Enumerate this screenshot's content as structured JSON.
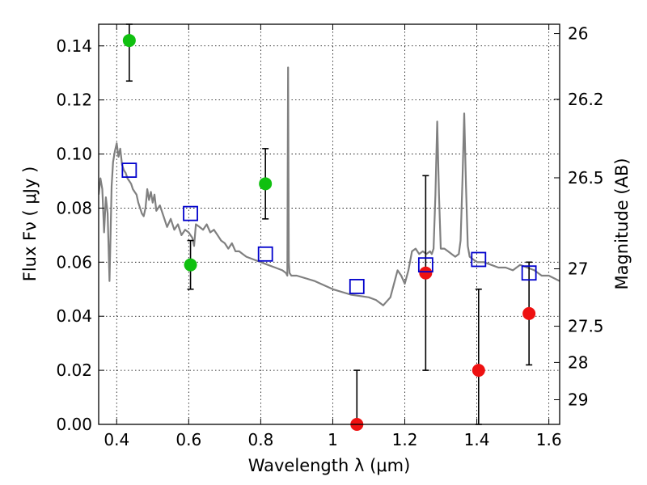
{
  "chart_data": {
    "type": "scatter",
    "xlabel": "Wavelength  λ (μm)",
    "ylabel": "Flux  Fν  ( μJy )",
    "y2label": "Magnitude (AB)",
    "xlim": [
      0.35,
      1.63
    ],
    "ylim": [
      0.0,
      0.148
    ],
    "grid": true,
    "x_ticks": [
      {
        "value": 0.4,
        "label": "0.4"
      },
      {
        "value": 0.6,
        "label": "0.6"
      },
      {
        "value": 0.8,
        "label": "0.8"
      },
      {
        "value": 1.0,
        "label": "1"
      },
      {
        "value": 1.2,
        "label": "1.2"
      },
      {
        "value": 1.4,
        "label": "1.4"
      },
      {
        "value": 1.6,
        "label": "1.6"
      }
    ],
    "y_ticks": [
      {
        "value": 0.0,
        "label": "0.00"
      },
      {
        "value": 0.02,
        "label": "0.02"
      },
      {
        "value": 0.04,
        "label": "0.04"
      },
      {
        "value": 0.06,
        "label": "0.06"
      },
      {
        "value": 0.08,
        "label": "0.08"
      },
      {
        "value": 0.1,
        "label": "0.10"
      },
      {
        "value": 0.12,
        "label": "0.12"
      },
      {
        "value": 0.14,
        "label": "0.14"
      }
    ],
    "y2_ticks": [
      {
        "value": 26,
        "label": "26"
      },
      {
        "value": 26.2,
        "label": "26.2"
      },
      {
        "value": 26.5,
        "label": "26.5"
      },
      {
        "value": 27,
        "label": "27"
      },
      {
        "value": 27.5,
        "label": "27.5"
      },
      {
        "value": 28,
        "label": "28"
      },
      {
        "value": 29,
        "label": "29"
      }
    ],
    "colors": {
      "detected": "#10c010",
      "undetected": "#ee1111",
      "model_photometry": "#0000cc",
      "sed": "#808080",
      "errorbar": "#000000"
    },
    "series": [
      {
        "kind": "line",
        "x": [
          0.35,
          0.355,
          0.36,
          0.365,
          0.37,
          0.375,
          0.38,
          0.383,
          0.386,
          0.39,
          0.395,
          0.4,
          0.405,
          0.41,
          0.415,
          0.42,
          0.425,
          0.43,
          0.435,
          0.44,
          0.445,
          0.45,
          0.455,
          0.46,
          0.465,
          0.47,
          0.475,
          0.48,
          0.485,
          0.49,
          0.495,
          0.5,
          0.505,
          0.51,
          0.52,
          0.53,
          0.54,
          0.55,
          0.56,
          0.57,
          0.58,
          0.59,
          0.6,
          0.61,
          0.615,
          0.62,
          0.63,
          0.64,
          0.65,
          0.66,
          0.67,
          0.68,
          0.69,
          0.7,
          0.71,
          0.72,
          0.73,
          0.74,
          0.75,
          0.76,
          0.78,
          0.8,
          0.82,
          0.84,
          0.86,
          0.87,
          0.874,
          0.876,
          0.878,
          0.88,
          0.885,
          0.9,
          0.95,
          1.0,
          1.05,
          1.1,
          1.12,
          1.14,
          1.16,
          1.18,
          1.19,
          1.2,
          1.21,
          1.22,
          1.23,
          1.24,
          1.25,
          1.26,
          1.27,
          1.275,
          1.28,
          1.285,
          1.29,
          1.295,
          1.3,
          1.31,
          1.32,
          1.33,
          1.34,
          1.35,
          1.355,
          1.36,
          1.365,
          1.37,
          1.375,
          1.38,
          1.4,
          1.42,
          1.44,
          1.46,
          1.48,
          1.5,
          1.52,
          1.54,
          1.56,
          1.58,
          1.6,
          1.63
        ],
        "y": [
          0.085,
          0.091,
          0.087,
          0.071,
          0.084,
          0.078,
          0.053,
          0.07,
          0.088,
          0.097,
          0.101,
          0.104,
          0.099,
          0.102,
          0.096,
          0.094,
          0.093,
          0.091,
          0.09,
          0.089,
          0.087,
          0.086,
          0.085,
          0.082,
          0.08,
          0.078,
          0.077,
          0.08,
          0.087,
          0.083,
          0.086,
          0.082,
          0.085,
          0.079,
          0.081,
          0.077,
          0.073,
          0.076,
          0.072,
          0.074,
          0.07,
          0.072,
          0.071,
          0.069,
          0.066,
          0.074,
          0.073,
          0.072,
          0.074,
          0.071,
          0.072,
          0.07,
          0.068,
          0.067,
          0.065,
          0.067,
          0.064,
          0.064,
          0.063,
          0.062,
          0.061,
          0.06,
          0.059,
          0.058,
          0.057,
          0.056,
          0.055,
          0.132,
          0.06,
          0.056,
          0.055,
          0.055,
          0.053,
          0.05,
          0.048,
          0.047,
          0.046,
          0.044,
          0.047,
          0.057,
          0.055,
          0.052,
          0.057,
          0.064,
          0.065,
          0.063,
          0.064,
          0.063,
          0.064,
          0.063,
          0.065,
          0.085,
          0.112,
          0.085,
          0.065,
          0.065,
          0.064,
          0.063,
          0.062,
          0.063,
          0.068,
          0.09,
          0.115,
          0.088,
          0.066,
          0.062,
          0.06,
          0.06,
          0.059,
          0.058,
          0.058,
          0.057,
          0.059,
          0.058,
          0.057,
          0.055,
          0.055,
          0.053
        ]
      },
      {
        "kind": "errorbar",
        "x": [
          0.435,
          0.605,
          0.813,
          1.067,
          1.258,
          1.405,
          1.545
        ],
        "y": [
          0.142,
          0.059,
          0.089,
          0.0,
          0.056,
          0.02,
          0.041
        ],
        "yerr_low": [
          0.127,
          0.05,
          0.076,
          0.0,
          0.02,
          0.0,
          0.022
        ],
        "yerr_high": [
          0.148,
          0.068,
          0.102,
          0.02,
          0.092,
          0.05,
          0.06
        ]
      },
      {
        "kind": "scatter",
        "marker": "filled-circle",
        "x": [
          0.435,
          0.605,
          0.813
        ],
        "y": [
          0.142,
          0.059,
          0.089
        ]
      },
      {
        "kind": "scatter",
        "marker": "filled-circle",
        "x": [
          1.067,
          1.258,
          1.405,
          1.545
        ],
        "y": [
          0.0,
          0.056,
          0.02,
          0.041
        ]
      },
      {
        "kind": "scatter",
        "marker": "open-square",
        "x": [
          0.435,
          0.605,
          0.813,
          1.067,
          1.258,
          1.405,
          1.545
        ],
        "y": [
          0.094,
          0.078,
          0.063,
          0.051,
          0.059,
          0.061,
          0.056
        ]
      }
    ]
  }
}
